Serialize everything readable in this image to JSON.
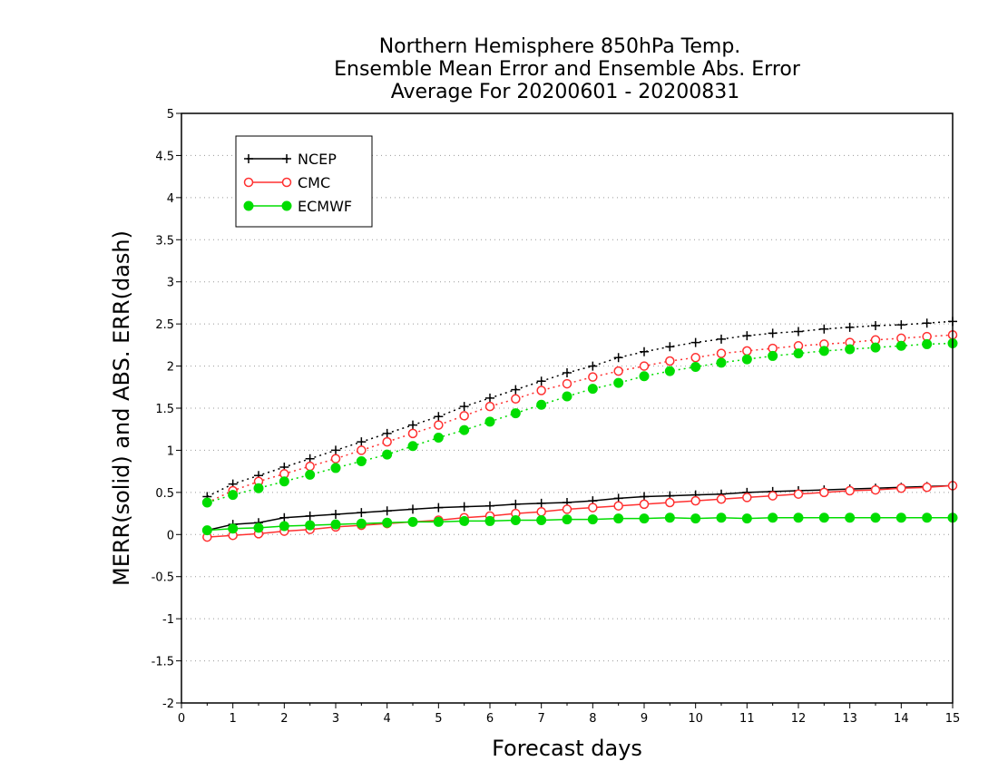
{
  "chart_data": {
    "type": "line",
    "title_lines": [
      "Northern Hemisphere 850hPa Temp.",
      "Ensemble Mean Error and Ensemble Abs. Error",
      "Average For 20200601 - 20200831"
    ],
    "xlabel": "Forecast days",
    "ylabel": "MERR(solid) and ABS. ERR(dash)",
    "xlim": [
      0,
      15
    ],
    "ylim": [
      -2,
      5
    ],
    "x_ticks": [
      "0",
      "1",
      "2",
      "3",
      "4",
      "5",
      "6",
      "7",
      "8",
      "9",
      "10",
      "11",
      "12",
      "13",
      "14",
      "15"
    ],
    "y_ticks": [
      "-2",
      "-1.5",
      "-1",
      "-0.5",
      "0",
      "0.5",
      "1",
      "1.5",
      "2",
      "2.5",
      "3",
      "3.5",
      "4",
      "4.5",
      "5"
    ],
    "grid": "horizontal dotted",
    "legend_position": "top-left",
    "x": [
      0.5,
      1,
      1.5,
      2,
      2.5,
      3,
      3.5,
      4,
      4.5,
      5,
      5.5,
      6,
      6.5,
      7,
      7.5,
      8,
      8.5,
      9,
      9.5,
      10,
      10.5,
      11,
      11.5,
      12,
      12.5,
      13,
      13.5,
      14,
      14.5,
      15
    ],
    "series": [
      {
        "name": "NCEP",
        "color": "#000000",
        "marker": "plus",
        "merr": [
          0.05,
          0.12,
          0.14,
          0.2,
          0.22,
          0.24,
          0.26,
          0.28,
          0.3,
          0.32,
          0.33,
          0.34,
          0.36,
          0.37,
          0.38,
          0.4,
          0.43,
          0.45,
          0.46,
          0.47,
          0.48,
          0.5,
          0.51,
          0.52,
          0.53,
          0.54,
          0.55,
          0.56,
          0.57,
          0.58
        ],
        "abs_err": [
          0.45,
          0.6,
          0.7,
          0.8,
          0.9,
          1.0,
          1.1,
          1.2,
          1.3,
          1.4,
          1.52,
          1.62,
          1.72,
          1.82,
          1.92,
          2.0,
          2.1,
          2.17,
          2.23,
          2.28,
          2.32,
          2.36,
          2.39,
          2.41,
          2.44,
          2.46,
          2.48,
          2.49,
          2.51,
          2.53
        ]
      },
      {
        "name": "CMC",
        "color": "#ff3030",
        "marker": "open-circle",
        "merr": [
          -0.03,
          -0.01,
          0.01,
          0.04,
          0.06,
          0.09,
          0.11,
          0.13,
          0.15,
          0.17,
          0.2,
          0.22,
          0.25,
          0.27,
          0.3,
          0.32,
          0.34,
          0.36,
          0.38,
          0.4,
          0.42,
          0.44,
          0.46,
          0.48,
          0.5,
          0.52,
          0.53,
          0.55,
          0.56,
          0.58
        ],
        "abs_err": [
          0.38,
          0.52,
          0.63,
          0.72,
          0.81,
          0.9,
          1.0,
          1.1,
          1.2,
          1.3,
          1.41,
          1.52,
          1.61,
          1.71,
          1.79,
          1.87,
          1.94,
          2.0,
          2.06,
          2.1,
          2.15,
          2.18,
          2.21,
          2.24,
          2.26,
          2.28,
          2.31,
          2.33,
          2.35,
          2.37
        ]
      },
      {
        "name": "ECMWF",
        "color": "#00dd00",
        "marker": "filled-circle",
        "merr": [
          0.05,
          0.07,
          0.08,
          0.1,
          0.11,
          0.12,
          0.13,
          0.14,
          0.15,
          0.15,
          0.16,
          0.16,
          0.17,
          0.17,
          0.18,
          0.18,
          0.19,
          0.19,
          0.2,
          0.19,
          0.2,
          0.19,
          0.2,
          0.2,
          0.2,
          0.2,
          0.2,
          0.2,
          0.2,
          0.2
        ],
        "abs_err": [
          0.38,
          0.47,
          0.55,
          0.63,
          0.71,
          0.79,
          0.87,
          0.95,
          1.05,
          1.15,
          1.24,
          1.34,
          1.44,
          1.54,
          1.64,
          1.73,
          1.8,
          1.88,
          1.94,
          1.99,
          2.04,
          2.08,
          2.12,
          2.15,
          2.18,
          2.2,
          2.22,
          2.24,
          2.26,
          2.27
        ]
      }
    ]
  }
}
